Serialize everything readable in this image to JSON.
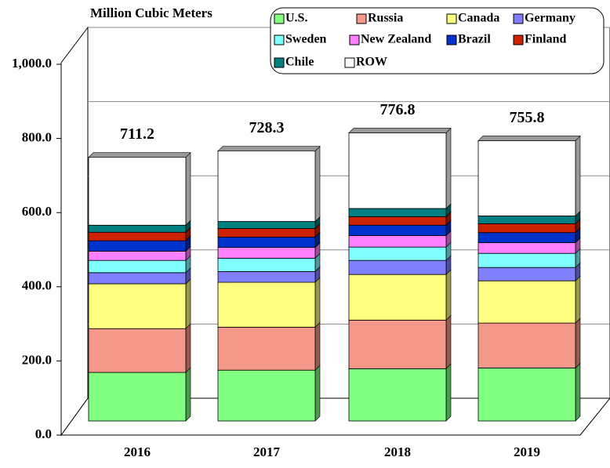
{
  "chart_data": {
    "type": "bar3d_stacked",
    "title": "Million Cubic Meters",
    "categories": [
      "2016",
      "2017",
      "2018",
      "2019"
    ],
    "series": [
      {
        "name": "U.S.",
        "color": "#80ff80",
        "values": [
          131,
          137,
          141,
          143
        ]
      },
      {
        "name": "Russia",
        "color": "#f4998a",
        "values": [
          118,
          116,
          131,
          121
        ]
      },
      {
        "name": "Canada",
        "color": "#ffff80",
        "values": [
          121,
          121,
          123,
          114
        ]
      },
      {
        "name": "Germany",
        "color": "#8080ff",
        "values": [
          30,
          29,
          38,
          36
        ]
      },
      {
        "name": "Sweden",
        "color": "#80ffff",
        "values": [
          33,
          36,
          36,
          38
        ]
      },
      {
        "name": "New Zealand",
        "color": "#ff80ff",
        "values": [
          25,
          29,
          31,
          29
        ]
      },
      {
        "name": "Brazil",
        "color": "#0033cc",
        "values": [
          28,
          28,
          28,
          27
        ]
      },
      {
        "name": "Finland",
        "color": "#cc2200",
        "values": [
          23,
          23,
          23,
          24
        ]
      },
      {
        "name": "Chile",
        "color": "#008080",
        "values": [
          19,
          19,
          22,
          21
        ]
      },
      {
        "name": "ROW",
        "color": "#ffffff",
        "values": [
          183,
          190,
          204,
          203
        ]
      }
    ],
    "totals": [
      711.2,
      728.3,
      776.8,
      755.8
    ],
    "ylim": [
      0,
      1000
    ],
    "yticks": [
      {
        "value": 0,
        "label": "0.0"
      },
      {
        "value": 200,
        "label": "200.0"
      },
      {
        "value": 400,
        "label": "400.0"
      },
      {
        "value": 600,
        "label": "600.0"
      },
      {
        "value": 800,
        "label": "800.0"
      },
      {
        "value": 1000,
        "label": "1,000.0"
      }
    ],
    "grid": true
  }
}
